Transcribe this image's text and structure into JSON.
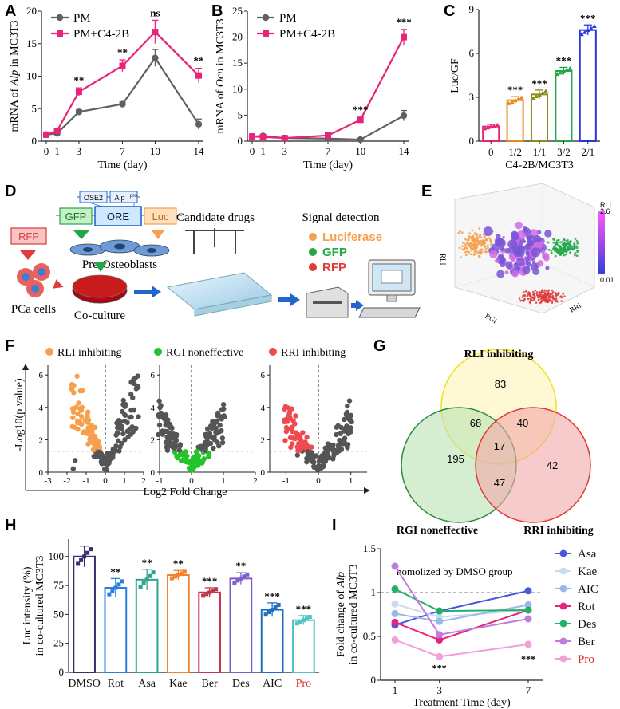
{
  "panels": {
    "A": "A",
    "B": "B",
    "C": "C",
    "D": "D",
    "E": "E",
    "F": "F",
    "G": "G",
    "H": "H",
    "I": "I"
  },
  "colors": {
    "pm": "#606060",
    "pmc4": "#e8237a",
    "pink": "#e8237a",
    "orange": "#f6a04d",
    "green": "#22a84a",
    "red": "#e03a3a",
    "purple": "#7a55d6"
  },
  "chart_data": [
    {
      "id": "A",
      "type": "line",
      "title": "",
      "xlabel": "Time (day)",
      "ylabel_pre": "mRNA of ",
      "ylabel_gene": "Alp",
      "ylabel_post": " in MC3T3",
      "x": [
        0,
        1,
        3,
        7,
        10,
        14
      ],
      "xticks": [
        "0",
        "1",
        "3",
        "7",
        "10",
        "14"
      ],
      "yticks": [
        "0",
        "5",
        "10",
        "15",
        "20"
      ],
      "ylim": [
        0,
        20
      ],
      "series": [
        {
          "name": "PM",
          "values": [
            1,
            1.2,
            4.5,
            5.7,
            12.8,
            2.6
          ],
          "err": [
            0.2,
            0.2,
            0.3,
            0.3,
            1.3,
            0.8
          ]
        },
        {
          "name": "PM+C4-2B",
          "values": [
            1,
            1.6,
            7.6,
            11.6,
            16.8,
            10.1
          ],
          "err": [
            0.2,
            0.3,
            0.6,
            0.9,
            1.8,
            1.1
          ]
        }
      ],
      "annotations": [
        "**",
        "**",
        "ns",
        "**"
      ]
    },
    {
      "id": "B",
      "type": "line",
      "xlabel": "Time (day)",
      "ylabel_pre": "mRNA of ",
      "ylabel_gene": "Ocn",
      "ylabel_post": " in MC3T3",
      "x": [
        0,
        1,
        3,
        7,
        10,
        14
      ],
      "xticks": [
        "0",
        "1",
        "3",
        "7",
        "10",
        "14"
      ],
      "yticks": [
        "0",
        "5",
        "10",
        "15",
        "20",
        "25"
      ],
      "ylim": [
        0,
        25
      ],
      "series": [
        {
          "name": "PM",
          "values": [
            0.9,
            1.0,
            0.6,
            0.5,
            0.3,
            4.9
          ],
          "err": [
            0.2,
            0.2,
            0.2,
            0.2,
            0.2,
            1.0
          ]
        },
        {
          "name": "PM+C4-2B",
          "values": [
            0.9,
            0.8,
            0.6,
            1.1,
            4.1,
            20.0
          ],
          "err": [
            0.2,
            0.2,
            0.2,
            0.3,
            0.5,
            1.5
          ]
        }
      ],
      "annotations": [
        "***",
        "***"
      ]
    },
    {
      "id": "C",
      "type": "bar",
      "xlabel": "C4-2B/MC3T3",
      "ylabel": "Luc/GF",
      "categories": [
        "0",
        "1/2",
        "1/1",
        "3/2",
        "2/1"
      ],
      "values": [
        1.0,
        2.8,
        3.2,
        4.8,
        7.6
      ],
      "err": [
        0.15,
        0.25,
        0.3,
        0.25,
        0.35
      ],
      "colors": [
        "#e8237a",
        "#e88a1e",
        "#8c8c1e",
        "#22a84a",
        "#2b35e0"
      ],
      "yticks": [
        "0",
        "3",
        "6",
        "9"
      ],
      "ylim": [
        0,
        9
      ],
      "annotations": [
        "",
        "***",
        "***",
        "***",
        "***"
      ]
    },
    {
      "id": "H",
      "type": "bar",
      "ylabel_line1": "Luc intensity (%)",
      "ylabel_line2": "in co-cultured MC3T3",
      "categories": [
        "DMSO",
        "Rot",
        "Asa",
        "Kae",
        "Ber",
        "Des",
        "AIC",
        "Pro"
      ],
      "values": [
        100,
        73,
        80,
        84,
        69,
        81,
        54,
        45
      ],
      "err": [
        9,
        8,
        9,
        4,
        4,
        5,
        6,
        4
      ],
      "colors": [
        "#3a2f6e",
        "#2a7fe0",
        "#2fa38c",
        "#f3812d",
        "#c0394a",
        "#7e5cc9",
        "#1f6fc0",
        "#4fc4c4"
      ],
      "yticks": [
        "0",
        "25",
        "50",
        "75",
        "100"
      ],
      "ylim": [
        0,
        115
      ],
      "annotations": [
        "",
        "**",
        "**",
        "**",
        "***",
        "**",
        "***",
        "***"
      ]
    },
    {
      "id": "I",
      "type": "line",
      "xlabel": "Treatment Time (day)",
      "ylabel_pre": "Fold change of ",
      "ylabel_gene": "Alp",
      "ylabel_line2": "in co-cultured MC3T3",
      "x": [
        1,
        3,
        7
      ],
      "xticks": [
        "1",
        "3",
        "7"
      ],
      "yticks": [
        "0",
        "0.5",
        "1",
        "1.5"
      ],
      "ylim": [
        0,
        1.5
      ],
      "note": "nomolized by DMSO group",
      "series": [
        {
          "name": "Asa",
          "values": [
            0.63,
            0.79,
            1.02
          ],
          "color": "#4a55e0"
        },
        {
          "name": "Kae",
          "values": [
            0.87,
            0.72,
            0.8
          ],
          "color": "#c8dcf0"
        },
        {
          "name": "AIC",
          "values": [
            0.76,
            0.67,
            0.86
          ],
          "color": "#9ab8e8"
        },
        {
          "name": "Rot",
          "values": [
            0.66,
            0.46,
            0.8
          ],
          "color": "#e8237a"
        },
        {
          "name": "Des",
          "values": [
            1.04,
            0.79,
            0.8
          ],
          "color": "#22b06a"
        },
        {
          "name": "Ber",
          "values": [
            1.3,
            0.52,
            0.7
          ],
          "color": "#c07ae0"
        },
        {
          "name": "Pro",
          "values": [
            0.46,
            0.27,
            0.41
          ],
          "color": "#f3a0d8"
        }
      ],
      "annotations": [
        "***",
        "***"
      ]
    }
  ],
  "D": {
    "rfp": "RFP",
    "gfp": "GFP",
    "ore": "ORE",
    "luc": "Luc",
    "ose2": "OSE2",
    "alp": "Alp",
    "alp_sup": "pro",
    "pre_osteo": "Pre-Osteoblasts",
    "pca": "PCa cells",
    "coculture": "Co-culture",
    "candidate": "Candidate drugs",
    "signal": "Signal detection",
    "legend": [
      {
        "label": "Luciferase",
        "color": "#f6a04d"
      },
      {
        "label": "GFP",
        "color": "#22a84a"
      },
      {
        "label": "RFP",
        "color": "#e03a3a"
      }
    ]
  },
  "E": {
    "colorbar_title": "RLI",
    "cb_max": "2.6",
    "cb_min": "0.01",
    "z_label": "RLI",
    "x_label": "RGI",
    "y_label": "RRI"
  },
  "F": {
    "legends": [
      "RLI inhibiting",
      "RGI noneffective",
      "RRI inhibiting"
    ],
    "ylabel": "-Log10(p value)",
    "xlabel": "Log2 Fold Change",
    "yticks": [
      "0",
      "2",
      "4",
      "6"
    ],
    "xticks1": [
      "-3",
      "-2",
      "-1",
      "0",
      "1",
      "2"
    ],
    "xticks2": [
      "-1",
      "0",
      "1",
      "2"
    ],
    "xticks3": [
      "-1",
      "0",
      "1"
    ]
  },
  "G": {
    "sets": [
      "RLI inhibiting",
      "RGI noneffective",
      "RRI inhibiting"
    ],
    "counts": {
      "rli_only": "83",
      "rgi_only": "195",
      "rri_only": "42",
      "rli_rgi": "68",
      "rli_rri": "40",
      "rgi_rri": "47",
      "all": "17"
    }
  }
}
